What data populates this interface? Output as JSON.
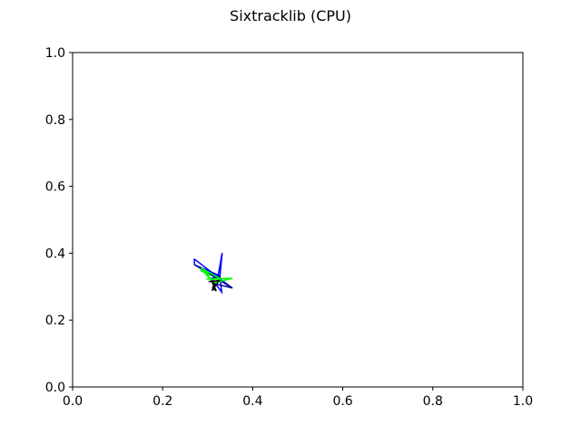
{
  "chart_data": {
    "type": "line",
    "title": "Sixtracklib (CPU)",
    "xlabel": "",
    "ylabel": "",
    "xlim": [
      0.0,
      1.0
    ],
    "ylim": [
      0.0,
      1.0
    ],
    "x_ticks": [
      0.0,
      0.2,
      0.4,
      0.6,
      0.8,
      1.0
    ],
    "y_ticks": [
      0.0,
      0.2,
      0.4,
      0.6,
      0.8,
      1.0
    ],
    "x_tick_labels": [
      "0.0",
      "0.2",
      "0.4",
      "0.6",
      "0.8",
      "1.0"
    ],
    "y_tick_labels": [
      "0.0",
      "0.2",
      "0.4",
      "0.6",
      "0.8",
      "1.0"
    ],
    "grid": false,
    "legend": "none",
    "series": [
      {
        "color": "#0000ff",
        "x": [
          0.27,
          0.354,
          0.322,
          0.332,
          0.327,
          0.308,
          0.331,
          0.327,
          0.301,
          0.326,
          0.271,
          0.27
        ],
        "y": [
          0.383,
          0.296,
          0.323,
          0.401,
          0.33,
          0.325,
          0.284,
          0.332,
          0.34,
          0.333,
          0.365,
          0.383
        ]
      },
      {
        "color": "#00008b",
        "x": [
          0.27,
          0.355,
          0.32
        ],
        "y": [
          0.366,
          0.296,
          0.307
        ]
      },
      {
        "color": "#00ff00",
        "x": [
          0.283,
          0.305,
          0.285,
          0.33,
          0.297,
          0.355,
          0.315,
          0.294,
          0.31
        ],
        "y": [
          0.349,
          0.333,
          0.356,
          0.322,
          0.323,
          0.325,
          0.312,
          0.34,
          0.315
        ]
      },
      {
        "color": "#000000",
        "x": [
          0.302,
          0.325,
          0.31,
          0.315,
          0.311,
          0.319,
          0.308,
          0.316,
          0.313
        ],
        "y": [
          0.315,
          0.318,
          0.288,
          0.31,
          0.296,
          0.287,
          0.319,
          0.305,
          0.311
        ]
      }
    ]
  }
}
